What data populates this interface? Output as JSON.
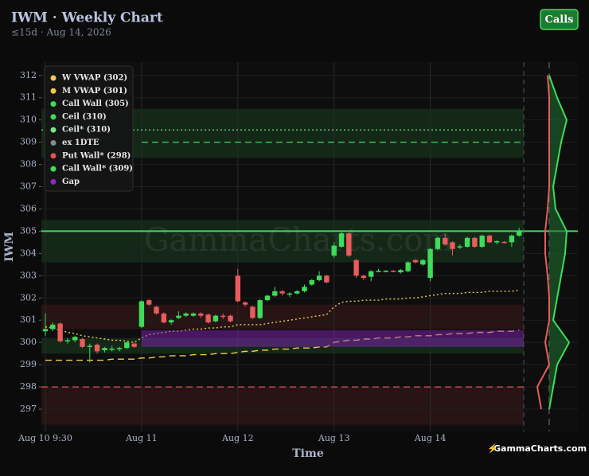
{
  "chart_data": {
    "type": "candlestick",
    "title": "IWM · Weekly Chart",
    "subtitle": "≤15d · Aug 14, 2026",
    "button": "Calls",
    "watermark": "GammaCharts.com",
    "logo": "GammaCharts.com",
    "x_label": "Time",
    "y_label": "IWM",
    "categories": [
      "Aug 10 9:30",
      null,
      null,
      null,
      null,
      null,
      null,
      null,
      null,
      null,
      null,
      null,
      null,
      "Aug 11",
      null,
      null,
      null,
      null,
      null,
      null,
      null,
      null,
      null,
      null,
      null,
      null,
      "Aug 12",
      null,
      null,
      null,
      null,
      null,
      null,
      null,
      null,
      null,
      null,
      null,
      null,
      "Aug 13",
      null,
      null,
      null,
      null,
      null,
      null,
      null,
      null,
      null,
      null,
      null,
      null,
      "Aug 14",
      null,
      null,
      null,
      null,
      null,
      null,
      null,
      null,
      null,
      null,
      null,
      null
    ],
    "open": [
      300.5,
      300.6,
      300.85,
      300.05,
      300.1,
      300.15,
      299.8,
      299.9,
      299.65,
      299.7,
      299.7,
      299.75,
      299.95,
      300.7,
      301.9,
      301.6,
      301.3,
      300.9,
      301.1,
      301.2,
      301.2,
      301.3,
      301.25,
      300.95,
      301.2,
      301.2,
      303.0,
      301.8,
      301.6,
      301.1,
      301.9,
      302.1,
      302.3,
      302.15,
      302.2,
      302.3,
      302.6,
      302.8,
      303.0,
      303.9,
      304.3,
      304.9,
      303.7,
      303.0,
      302.95,
      303.2,
      303.2,
      303.22,
      303.15,
      303.2,
      303.7,
      303.5,
      302.9,
      304.2,
      304.7,
      304.5,
      304.28,
      304.3,
      304.7,
      304.3,
      304.8,
      304.5,
      304.52,
      304.5,
      304.8
    ],
    "high": [
      301.3,
      300.9,
      300.9,
      300.2,
      300.3,
      300.2,
      299.95,
      299.95,
      299.8,
      299.85,
      299.8,
      300.05,
      300.0,
      301.9,
      301.95,
      301.65,
      301.35,
      301.05,
      301.4,
      301.35,
      301.35,
      301.35,
      301.3,
      301.25,
      301.3,
      301.25,
      303.3,
      301.85,
      301.65,
      301.95,
      302.15,
      302.5,
      302.35,
      302.25,
      302.35,
      302.6,
      302.85,
      303.2,
      303.05,
      304.5,
      305.0,
      304.95,
      303.75,
      303.05,
      303.25,
      303.3,
      303.25,
      303.25,
      303.3,
      303.65,
      303.75,
      303.75,
      304.25,
      304.75,
      304.9,
      304.55,
      304.4,
      304.75,
      304.75,
      304.85,
      304.85,
      304.6,
      304.55,
      304.85,
      305.15
    ],
    "low": [
      300.3,
      300.5,
      300.0,
      299.95,
      300.0,
      299.75,
      299.1,
      299.5,
      299.55,
      299.6,
      299.6,
      299.7,
      299.75,
      300.65,
      301.65,
      301.25,
      300.85,
      300.8,
      301.05,
      301.15,
      301.15,
      301.1,
      300.85,
      300.9,
      301.05,
      300.9,
      301.8,
      301.6,
      301.05,
      301.05,
      301.85,
      302.05,
      302.1,
      302.05,
      302.15,
      302.25,
      302.55,
      302.75,
      302.65,
      303.8,
      304.25,
      303.85,
      302.9,
      302.8,
      302.75,
      303.15,
      303.15,
      303.15,
      303.1,
      303.15,
      303.55,
      303.45,
      302.75,
      304.15,
      304.35,
      303.9,
      304.2,
      304.25,
      304.25,
      304.25,
      304.45,
      304.4,
      304.45,
      304.3,
      304.75
    ],
    "close": [
      300.6,
      300.8,
      300.05,
      300.1,
      300.25,
      299.8,
      299.85,
      299.6,
      299.75,
      299.72,
      299.75,
      300.0,
      299.8,
      301.85,
      301.7,
      301.3,
      300.9,
      301.0,
      301.2,
      301.3,
      301.3,
      301.2,
      300.9,
      301.2,
      301.15,
      300.95,
      301.85,
      301.7,
      301.1,
      301.9,
      302.1,
      302.3,
      302.2,
      302.2,
      302.3,
      302.5,
      302.8,
      303.0,
      302.7,
      304.35,
      304.9,
      303.9,
      303.0,
      302.9,
      303.2,
      303.22,
      303.22,
      303.18,
      303.25,
      303.6,
      303.6,
      303.7,
      304.2,
      304.7,
      304.4,
      304.2,
      304.32,
      304.7,
      304.3,
      304.8,
      304.5,
      304.55,
      304.48,
      304.8,
      305.0
    ],
    "up_color": "#3ddc5a",
    "down_color": "#e85c5c",
    "ylim": [
      296,
      312.6
    ],
    "yticks": [
      297,
      298,
      299,
      300,
      301,
      302,
      303,
      304,
      305,
      306,
      307,
      308,
      309,
      310,
      311,
      312
    ],
    "grid": true,
    "legend": "upper left",
    "series": [
      {
        "name": "W VWAP (302)",
        "color": "#f2c94c",
        "style": "dotted",
        "values": [
          300.7,
          300.65,
          300.55,
          300.45,
          300.4,
          300.3,
          300.25,
          300.2,
          300.15,
          300.1,
          300.1,
          300.05,
          300.0,
          300.2,
          300.35,
          300.4,
          300.45,
          300.5,
          300.5,
          300.55,
          300.6,
          300.6,
          300.65,
          300.65,
          300.7,
          300.7,
          300.8,
          300.8,
          300.8,
          300.8,
          300.85,
          300.9,
          300.95,
          301.0,
          301.05,
          301.1,
          301.15,
          301.2,
          301.25,
          301.6,
          301.8,
          301.85,
          301.85,
          301.9,
          301.9,
          301.9,
          301.95,
          301.95,
          301.95,
          302.0,
          302.0,
          302.05,
          302.1,
          302.15,
          302.2,
          302.2,
          302.2,
          302.25,
          302.25,
          302.25,
          302.3,
          302.3,
          302.3,
          302.3,
          302.35
        ]
      },
      {
        "name": "M VWAP (301)",
        "color": "#f2c94c",
        "style": "dashed",
        "values": [
          299.2,
          299.2,
          299.2,
          299.2,
          299.2,
          299.2,
          299.2,
          299.2,
          299.2,
          299.25,
          299.25,
          299.25,
          299.25,
          299.3,
          299.3,
          299.35,
          299.35,
          299.4,
          299.4,
          299.4,
          299.45,
          299.45,
          299.45,
          299.5,
          299.5,
          299.5,
          299.55,
          299.6,
          299.6,
          299.65,
          299.65,
          299.7,
          299.7,
          299.7,
          299.75,
          299.75,
          299.75,
          299.8,
          299.8,
          300.0,
          300.05,
          300.1,
          300.1,
          300.15,
          300.15,
          300.2,
          300.2,
          300.2,
          300.25,
          300.25,
          300.3,
          300.3,
          300.3,
          300.35,
          300.35,
          300.4,
          300.4,
          300.4,
          300.45,
          300.45,
          300.45,
          300.5,
          300.5,
          300.5,
          300.55
        ]
      },
      {
        "name": "Call Wall (305)",
        "color": "#3ddc5a",
        "style": "solid",
        "level": 305
      },
      {
        "name": "Ceil (310)",
        "color": "#3ddc5a"
      },
      {
        "name": "Ceil* (310)",
        "color": "#7be08a",
        "style": "dotted",
        "level": 309.55
      },
      {
        "name": "ex 1DTE",
        "color": "#8a8a8a"
      },
      {
        "name": "Put Wall* (298)",
        "color": "#e05555",
        "style": "dashed",
        "level": 298
      },
      {
        "name": "Call Wall* (309)",
        "color": "#3ddc5a",
        "style": "dashed",
        "level": 309,
        "start": 13
      },
      {
        "name": "Gap",
        "color": "#8e24c8",
        "band": [
          299.8,
          300.55
        ],
        "start": 13
      }
    ],
    "zones": [
      {
        "low": 308.3,
        "high": 310.5,
        "color": "#1f5a2a"
      },
      {
        "low": 303.6,
        "high": 305.5,
        "color": "#1f5a2a"
      },
      {
        "low": 299.5,
        "high": 300.2,
        "color": "#1f5a2a"
      },
      {
        "low": 296.3,
        "high": 298.0,
        "color": "#5a1f1f"
      },
      {
        "low": 300.6,
        "high": 301.7,
        "color": "#5a1f1f"
      }
    ],
    "profile": {
      "levels": [
        297,
        298,
        299,
        300,
        301,
        302,
        303,
        304,
        305,
        306,
        307,
        308,
        309,
        310,
        311,
        312
      ],
      "calls": [
        0,
        5,
        10,
        25,
        5,
        10,
        15,
        20,
        22,
        8,
        5,
        10,
        15,
        22,
        10,
        0
      ],
      "puts": [
        10,
        15,
        0,
        5,
        0,
        0,
        2,
        5,
        5,
        2,
        0,
        0,
        0,
        0,
        0,
        2
      ]
    }
  }
}
